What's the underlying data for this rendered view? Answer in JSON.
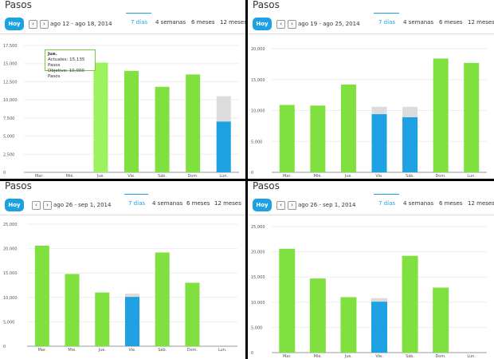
{
  "colors": {
    "green": "#7fe040",
    "hover_green": "#9bf25e",
    "blue": "#1ea1e2",
    "gray": "#dcdcdc"
  },
  "panels": [
    {
      "title": "Pasos",
      "hoy": "Hoy",
      "range": "ago 12 - ago 18, 2014",
      "tabs": [
        "7 días",
        "4 semanas",
        "6 meses",
        "12 meses"
      ],
      "active_tab": 0,
      "tooltip": {
        "day": "Jue.",
        "actual": "Actuales: 15,135 Pasos",
        "target": "Objetivo: 10,000 Pasos"
      }
    },
    {
      "title": "Pasos",
      "hoy": "Hoy",
      "range": "ago 19 - ago 25, 2014",
      "tabs": [
        "7 días",
        "4 semanas",
        "6 meses",
        "12 meses"
      ],
      "active_tab": 0
    },
    {
      "title": "Pasos",
      "hoy": "Hoy",
      "range": "ago 26 - sep 1, 2014",
      "tabs": [
        "7 días",
        "4 semanas",
        "6 meses",
        "12 meses"
      ],
      "active_tab": 0
    },
    {
      "title": "Pasos",
      "hoy": "Hoy",
      "range": "ago 26 - sep 1, 2014",
      "tabs": [
        "7 días",
        "4 semanas",
        "6 meses",
        "12 meses"
      ],
      "active_tab": 0
    }
  ],
  "chart_data": [
    {
      "type": "bar",
      "categories": [
        "Mar.",
        "Mié.",
        "Jue.",
        "Vie.",
        "Sáb.",
        "Dom.",
        "Lun."
      ],
      "values": [
        0,
        0,
        15135,
        14000,
        11800,
        13500,
        7000
      ],
      "target_values": [
        null,
        null,
        null,
        null,
        null,
        null,
        10500
      ],
      "bar_colors": [
        "green",
        "green",
        "hover_green",
        "green",
        "green",
        "green",
        "blue"
      ],
      "ylim": [
        0,
        17500
      ],
      "yticks": [
        "0",
        "2,500",
        "5,000",
        "7,500",
        "10,000",
        "12,500",
        "15,000",
        "17,500"
      ]
    },
    {
      "type": "bar",
      "categories": [
        "Mar.",
        "Mié.",
        "Jue.",
        "Vie.",
        "Sáb.",
        "Dom.",
        "Lun."
      ],
      "values": [
        10900,
        10800,
        14200,
        9400,
        8900,
        18400,
        17700
      ],
      "target_values": [
        null,
        null,
        null,
        10600,
        10600,
        null,
        null
      ],
      "bar_colors": [
        "green",
        "green",
        "green",
        "blue",
        "blue",
        "green",
        "green"
      ],
      "ylim": [
        0,
        20000
      ],
      "yticks": [
        "0",
        "5,000",
        "10,000",
        "15,000",
        "20,000"
      ]
    },
    {
      "type": "bar",
      "categories": [
        "Mar.",
        "Mié.",
        "Jue.",
        "Vie.",
        "Sáb.",
        "Dom.",
        "Lun."
      ],
      "values": [
        20600,
        14800,
        11000,
        10100,
        19200,
        13000,
        0
      ],
      "target_values": [
        null,
        null,
        null,
        10800,
        null,
        null,
        null
      ],
      "bar_colors": [
        "green",
        "green",
        "green",
        "blue",
        "green",
        "green",
        "green"
      ],
      "ylim": [
        0,
        25000
      ],
      "yticks": [
        "0",
        "5,000",
        "10,000",
        "15,000",
        "20,000",
        "25,000"
      ]
    },
    {
      "type": "bar",
      "categories": [
        "Mar.",
        "Mié.",
        "Jue.",
        "Vie.",
        "Sáb.",
        "Dom.",
        "Lun."
      ],
      "values": [
        20600,
        14700,
        11000,
        10100,
        19200,
        12900,
        0
      ],
      "target_values": [
        null,
        null,
        null,
        10800,
        null,
        null,
        null
      ],
      "bar_colors": [
        "green",
        "green",
        "green",
        "blue",
        "green",
        "green",
        "green"
      ],
      "ylim": [
        0,
        25000
      ],
      "yticks": [
        "0",
        "5,000",
        "10,000",
        "15,000",
        "20,000",
        "25,000"
      ]
    }
  ]
}
